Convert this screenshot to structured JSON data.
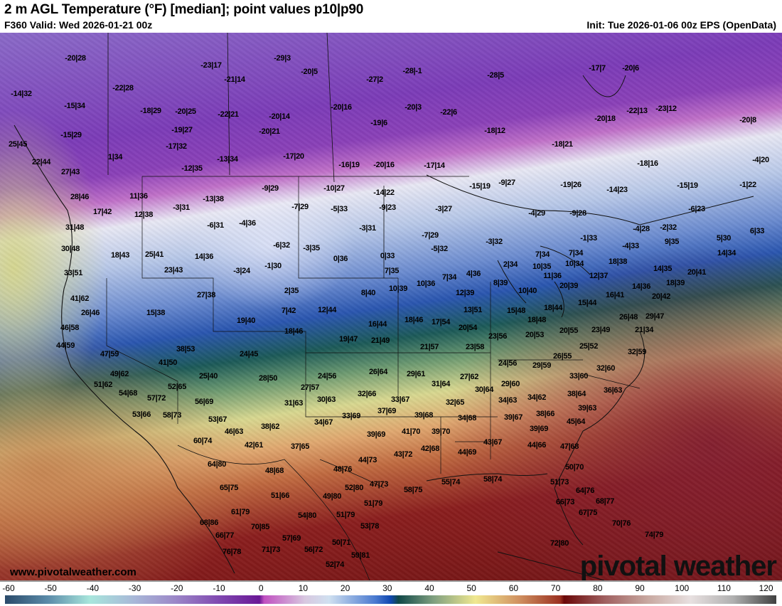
{
  "header": {
    "title": "2 m AGL Temperature (°F) [median]; point values p10|p90",
    "valid": "F360 Valid: Wed 2026-01-21 00z",
    "init": "Init: Tue 2026-01-06 00z EPS (OpenData)"
  },
  "map": {
    "point_values": [
      "-20|28",
      "-29|3",
      "-23|17",
      "-28|-1",
      "-20|5",
      "-27|2",
      "-28|5",
      "-17|7",
      "-20|6",
      "-14|32",
      "-22|28",
      "-21|14",
      "-15|34",
      "-18|29",
      "-20|25",
      "-22|21",
      "-20|14",
      "-20|16",
      "-20|3",
      "-22|6",
      "-22|13",
      "-23|12",
      "-19|6",
      "-20|18",
      "-20|8",
      "-19|27",
      "-20|21",
      "-18|12",
      "-15|29",
      "25|45",
      "-17|32",
      "1|34",
      "-18|21",
      "-17|20",
      "-13|34",
      "-12|35",
      "-16|19",
      "-20|16",
      "-17|14",
      "-18|16",
      "-4|20",
      "22|44",
      "27|43",
      "-10|27",
      "-9|29",
      "-15|19",
      "-9|27",
      "-19|26",
      "-14|23",
      "-15|19",
      "-1|22",
      "-14|22",
      "28|46",
      "11|36",
      "-13|38",
      "-9|23",
      "-7|29",
      "-5|33",
      "-3|27",
      "-4|29",
      "-9|28",
      "-6|23",
      "17|42",
      "12|38",
      "-3|31",
      "-4|36",
      "-6|31",
      "31|48",
      "-3|31",
      "-7|29",
      "-4|28",
      "-2|32",
      "6|33",
      "5|30",
      "-1|33",
      "-6|32",
      "-3|35",
      "-3|32",
      "-5|32",
      "9|35",
      "-4|33",
      "30|48",
      "18|43",
      "25|41",
      "14|36",
      "0|36",
      "0|33",
      "2|34",
      "10|35",
      "7|34",
      "7|34",
      "10|34",
      "18|38",
      "14|34",
      "33|51",
      "23|43",
      "-3|24",
      "-1|30",
      "7|35",
      "4|36",
      "11|36",
      "12|37",
      "14|35",
      "20|41",
      "8|39",
      "7|34",
      "10|36",
      "10|39",
      "27|38",
      "2|35",
      "8|40",
      "12|39",
      "20|39",
      "18|39",
      "41|62",
      "16|41",
      "15|44",
      "14|36",
      "20|42",
      "26|46",
      "15|38",
      "7|42",
      "12|44",
      "13|51",
      "15|48",
      "18|44",
      "10|40",
      "16|44",
      "18|46",
      "17|54",
      "20|54",
      "18|48",
      "26|48",
      "29|47",
      "19|40",
      "18|46",
      "21|34",
      "46|58",
      "19|47",
      "21|49",
      "23|56",
      "20|53",
      "20|55",
      "23|49",
      "44|59",
      "47|59",
      "38|53",
      "21|57",
      "23|58",
      "25|52",
      "32|59",
      "24|45",
      "26|55",
      "41|50",
      "24|56",
      "29|59",
      "32|60",
      "49|62",
      "25|40",
      "28|50",
      "24|56",
      "26|64",
      "29|61",
      "27|62",
      "33|60",
      "51|62",
      "52|65",
      "27|57",
      "31|64",
      "30|64",
      "29|60",
      "36|63",
      "54|68",
      "57|72",
      "32|66",
      "33|67",
      "32|65",
      "34|63",
      "34|62",
      "38|64",
      "56|69",
      "31|63",
      "30|63",
      "37|69",
      "39|68",
      "39|63",
      "53|66",
      "58|73",
      "53|67",
      "34|68",
      "39|67",
      "38|66",
      "45|64",
      "33|69",
      "34|67",
      "38|62",
      "46|63",
      "39|69",
      "41|70",
      "39|70",
      "39|69",
      "60|74",
      "43|67",
      "44|66",
      "47|68",
      "42|61",
      "37|65",
      "42|68",
      "44|69",
      "43|72",
      "44|73",
      "64|80",
      "48|68",
      "48|76",
      "50|70",
      "51|73",
      "58|74",
      "55|74",
      "58|75",
      "47|73",
      "52|80",
      "65|75",
      "64|76",
      "51|66",
      "49|80",
      "66|73",
      "68|77",
      "61|79",
      "54|80",
      "51|79",
      "51|79",
      "67|75",
      "68|86",
      "70|85",
      "53|78",
      "70|76",
      "74|79",
      "66|77",
      "57|69",
      "50|71",
      "71|73",
      "56|72",
      "59|81",
      "76|78",
      "72|80",
      "52|74"
    ],
    "website": "www.pivotalweather.com",
    "logo": "pivotal weather"
  },
  "colorbar": {
    "unit": "°F",
    "ticks": [
      "-60",
      "-50",
      "-40",
      "-30",
      "-20",
      "-10",
      "0",
      "10",
      "20",
      "30",
      "40",
      "50",
      "60",
      "70",
      "80",
      "90",
      "100",
      "110",
      "120"
    ]
  }
}
